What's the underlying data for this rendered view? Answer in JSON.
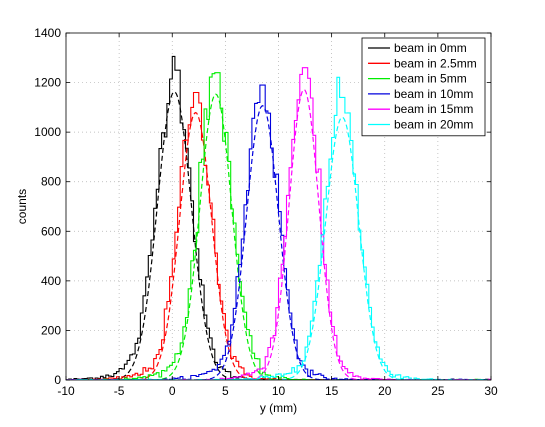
{
  "chart_data": {
    "type": "line",
    "xlabel": "y (mm)",
    "ylabel": "counts",
    "xlim": [
      -10,
      30
    ],
    "ylim": [
      0,
      1400
    ],
    "xticks": [
      -10,
      -5,
      0,
      5,
      10,
      15,
      20,
      25,
      30
    ],
    "yticks": [
      0,
      200,
      400,
      600,
      800,
      1000,
      1200,
      1400
    ],
    "grid": true,
    "grid_style": "dotted",
    "legend_position": "top-right",
    "bin_width": 0.25,
    "series": [
      {
        "name": "beam in 0mm",
        "color": "#000000",
        "peak_x": 0.5,
        "peak_counts": 1250,
        "fit_center": 0.2,
        "fit_sigma": 1.6
      },
      {
        "name": "beam in 2.5mm",
        "color": "#ff0000",
        "peak_x": 2.3,
        "peak_counts": 1160,
        "fit_center": 2.2,
        "fit_sigma": 1.5
      },
      {
        "name": "beam in 5mm",
        "color": "#00ee00",
        "peak_x": 4.2,
        "peak_counts": 1240,
        "fit_center": 4.1,
        "fit_sigma": 1.5
      },
      {
        "name": "beam in 10mm",
        "color": "#0000dd",
        "peak_x": 8.5,
        "peak_counts": 1190,
        "fit_center": 8.5,
        "fit_sigma": 1.5
      },
      {
        "name": "beam in 15mm",
        "color": "#ff00ff",
        "peak_x": 12.5,
        "peak_counts": 1260,
        "fit_center": 12.4,
        "fit_sigma": 1.4
      },
      {
        "name": "beam in 20mm",
        "color": "#00ffff",
        "peak_x": 16.0,
        "peak_counts": 1140,
        "fit_center": 16.0,
        "fit_sigma": 1.55
      }
    ]
  }
}
